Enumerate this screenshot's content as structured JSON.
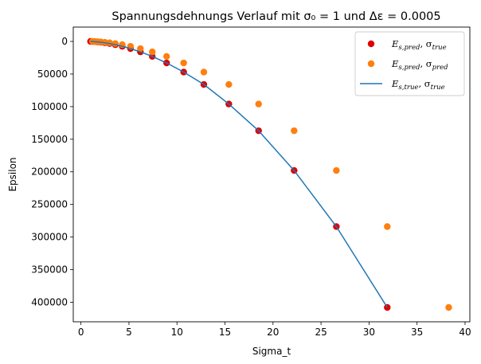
{
  "chart_data": {
    "type": "scatter",
    "title": "Spannungsdehnungs Verlauf mit σ₀ = 1 und Δε = 0.0005",
    "xlabel": "Sigma_t",
    "ylabel": "Epsilon",
    "xlim": [
      -0.8,
      40.5
    ],
    "ylim": [
      430000,
      -22000
    ],
    "y_inverted": true,
    "grid": false,
    "legend_position": "top-right",
    "xticks": [
      "0",
      "5",
      "10",
      "15",
      "20",
      "25",
      "30",
      "35",
      "40"
    ],
    "yticks": [
      "0",
      "50000",
      "100000",
      "150000",
      "200000",
      "250000",
      "300000",
      "350000",
      "400000"
    ],
    "series": [
      {
        "name": "E_{s,pred}, σ_{true}",
        "label_main": "E",
        "label_sub": "s,pred",
        "label_sep": ", σ",
        "label_sub2": "true",
        "kind": "scatter",
        "color": "#e00000",
        "x": [
          1.0,
          1.2,
          1.44,
          1.73,
          2.07,
          2.49,
          2.99,
          3.58,
          4.3,
          5.16,
          6.19,
          7.43,
          8.92,
          10.7,
          12.8,
          15.4,
          18.5,
          22.2,
          26.6,
          31.9
        ],
        "y": [
          0,
          160,
          400,
          750,
          1300,
          2100,
          3300,
          5000,
          7500,
          11000,
          16000,
          23000,
          33000,
          47000,
          66000,
          96000,
          137000,
          198000,
          284000,
          408000
        ]
      },
      {
        "name": "E_{s,pred}, σ_{pred}",
        "label_main": "E",
        "label_sub": "s,pred",
        "label_sep": ", σ",
        "label_sub2": "pred",
        "kind": "scatter",
        "color": "#ff7f0e",
        "x": [
          1.2,
          1.44,
          1.73,
          2.07,
          2.49,
          2.99,
          3.58,
          4.3,
          5.16,
          6.19,
          7.43,
          8.92,
          10.7,
          12.8,
          15.4,
          18.5,
          22.2,
          26.6,
          31.9,
          38.3
        ],
        "y": [
          0,
          160,
          400,
          750,
          1300,
          2100,
          3300,
          5000,
          7500,
          11000,
          16000,
          23000,
          33000,
          47000,
          66000,
          96000,
          137000,
          198000,
          284000,
          408000
        ]
      },
      {
        "name": "E_{s,true}, σ_{true}",
        "label_main": "E",
        "label_sub": "s,true",
        "label_sep": ", σ",
        "label_sub2": "true",
        "kind": "line",
        "color": "#1f77b4",
        "x": [
          1.0,
          1.2,
          1.44,
          1.73,
          2.07,
          2.49,
          2.99,
          3.58,
          4.3,
          5.16,
          6.19,
          7.43,
          8.92,
          10.7,
          12.8,
          15.4,
          18.5,
          22.2,
          26.6,
          31.9
        ],
        "y": [
          0,
          160,
          400,
          750,
          1300,
          2100,
          3300,
          5000,
          7500,
          11000,
          16000,
          23000,
          33000,
          47000,
          66000,
          96000,
          137000,
          198000,
          284000,
          408000
        ]
      }
    ]
  }
}
